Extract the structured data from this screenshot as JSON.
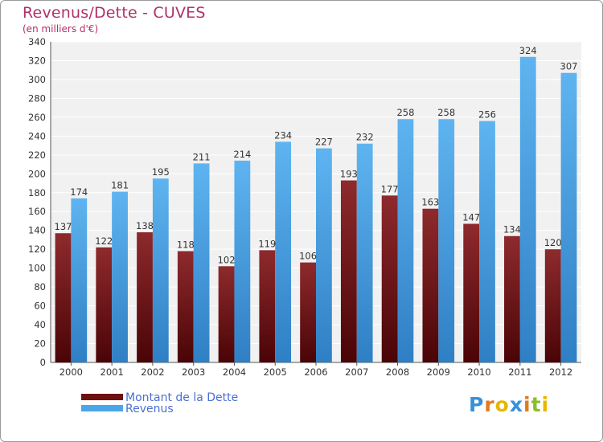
{
  "header": {
    "title": "Revenus/Dette - CUVES",
    "subtitle": "(en milliers d'€)"
  },
  "legend": [
    {
      "label": "Montant de la Dette",
      "color": "#6e0f10"
    },
    {
      "label": "Revenus",
      "color": "#4aa6e8"
    }
  ],
  "brand": {
    "letters": [
      "P",
      "r",
      "o",
      "x",
      "i",
      "t",
      "i"
    ],
    "colors": [
      "#3a8fd9",
      "#e07b1f",
      "#e6b800",
      "#3a8fd9",
      "#e07b1f",
      "#8bbf2a",
      "#e6b800"
    ]
  },
  "chart_data": {
    "type": "bar",
    "categories": [
      "2000",
      "2001",
      "2002",
      "2003",
      "2004",
      "2005",
      "2006",
      "2007",
      "2008",
      "2009",
      "2010",
      "2011",
      "2012"
    ],
    "series": [
      {
        "name": "Montant de la Dette",
        "color": "#6e0f10",
        "values": [
          137,
          122,
          138,
          118,
          102,
          119,
          106,
          193,
          177,
          163,
          147,
          134,
          120
        ]
      },
      {
        "name": "Revenus",
        "color": "#4aa6e8",
        "values": [
          174,
          181,
          195,
          211,
          214,
          234,
          227,
          232,
          258,
          258,
          256,
          324,
          307
        ]
      }
    ],
    "ylim": [
      0,
      340
    ],
    "ytick_step": 20,
    "grid": true,
    "legend_position": "bottom-left"
  }
}
